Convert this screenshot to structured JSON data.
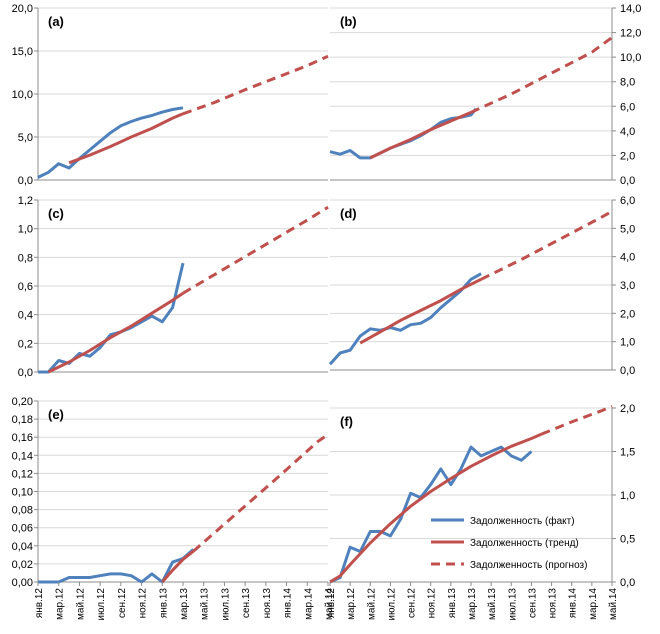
{
  "colors": {
    "fact": "#4f81bd",
    "trend": "#c0504d",
    "forecast": "#c0504d",
    "grid": "#d9d9d9",
    "axis": "#8c8c8c"
  },
  "x_labels": [
    "янв.12",
    "мар.12",
    "май.12",
    "июл.12",
    "сен.12",
    "ноя.12",
    "янв.13",
    "мар.13",
    "май.13",
    "июл.13",
    "сен.13",
    "ноя.13",
    "янв.14",
    "мар.14",
    "май.14"
  ],
  "legend": {
    "fact": "Задолженность (факт)",
    "trend": "Задолженность (тренд)",
    "forecast": "Задолженность (прогноз)"
  },
  "chart_data": [
    {
      "panel": "(a)",
      "type": "line",
      "axis_side": "left",
      "ylim": [
        0,
        20
      ],
      "yticks": [
        "0,0",
        "5,0",
        "10,0",
        "15,0",
        "20,0"
      ],
      "x_months": 28,
      "series": [
        {
          "key": "fact",
          "values": [
            [
              0,
              0.3
            ],
            [
              1,
              0.9
            ],
            [
              2,
              1.9
            ],
            [
              3,
              1.4
            ],
            [
              4,
              2.5
            ],
            [
              5,
              3.5
            ],
            [
              6,
              4.5
            ],
            [
              7,
              5.5
            ],
            [
              8,
              6.3
            ],
            [
              9,
              6.8
            ],
            [
              10,
              7.2
            ],
            [
              11,
              7.5
            ],
            [
              12,
              7.9
            ],
            [
              13,
              8.2
            ],
            [
              14,
              8.4
            ]
          ]
        },
        {
          "key": "trend",
          "values": [
            [
              3,
              2.0
            ],
            [
              5,
              2.9
            ],
            [
              7,
              3.9
            ],
            [
              9,
              5.0
            ],
            [
              11,
              6.0
            ],
            [
              13,
              7.2
            ],
            [
              14,
              7.7
            ]
          ]
        },
        {
          "key": "forecast",
          "values": [
            [
              14,
              7.7
            ],
            [
              17,
              9.0
            ],
            [
              20,
              10.5
            ],
            [
              23,
              11.9
            ],
            [
              26,
              13.3
            ],
            [
              28,
              14.4
            ]
          ]
        }
      ]
    },
    {
      "panel": "(b)",
      "type": "line",
      "axis_side": "right",
      "ylim": [
        0,
        14
      ],
      "yticks": [
        "0,0",
        "2,0",
        "4,0",
        "6,0",
        "8,0",
        "10,0",
        "12,0",
        "14,0"
      ],
      "x_months": 28,
      "series": [
        {
          "key": "fact",
          "values": [
            [
              0,
              2.3
            ],
            [
              1,
              2.1
            ],
            [
              2,
              2.4
            ],
            [
              3,
              1.8
            ],
            [
              4,
              1.8
            ],
            [
              5,
              2.2
            ],
            [
              6,
              2.6
            ],
            [
              7,
              2.9
            ],
            [
              8,
              3.2
            ],
            [
              9,
              3.6
            ],
            [
              10,
              4.1
            ],
            [
              11,
              4.7
            ],
            [
              12,
              5.0
            ],
            [
              13,
              5.1
            ],
            [
              14,
              5.3
            ],
            [
              14.5,
              5.8
            ]
          ]
        },
        {
          "key": "trend",
          "values": [
            [
              4,
              1.8
            ],
            [
              6,
              2.6
            ],
            [
              8,
              3.3
            ],
            [
              10,
              4.1
            ],
            [
              12,
              4.8
            ],
            [
              14,
              5.5
            ]
          ]
        },
        {
          "key": "forecast",
          "values": [
            [
              14,
              5.5
            ],
            [
              18,
              7.0
            ],
            [
              22,
              8.7
            ],
            [
              26,
              10.4
            ],
            [
              28,
              11.6
            ]
          ]
        }
      ]
    },
    {
      "panel": "(c)",
      "type": "line",
      "axis_side": "left",
      "ylim": [
        0,
        1.2
      ],
      "yticks": [
        "0,0",
        "0,2",
        "0,4",
        "0,6",
        "0,8",
        "1,0",
        "1,2"
      ],
      "x_months": 28,
      "series": [
        {
          "key": "fact",
          "values": [
            [
              0,
              0.0
            ],
            [
              1,
              0.0
            ],
            [
              2,
              0.08
            ],
            [
              3,
              0.06
            ],
            [
              4,
              0.13
            ],
            [
              5,
              0.11
            ],
            [
              6,
              0.17
            ],
            [
              7,
              0.26
            ],
            [
              8,
              0.28
            ],
            [
              9,
              0.31
            ],
            [
              10,
              0.35
            ],
            [
              11,
              0.39
            ],
            [
              12,
              0.35
            ],
            [
              13,
              0.45
            ],
            [
              14,
              0.76
            ]
          ]
        },
        {
          "key": "trend",
          "values": [
            [
              1,
              0.0
            ],
            [
              3,
              0.07
            ],
            [
              5,
              0.15
            ],
            [
              7,
              0.24
            ],
            [
              9,
              0.32
            ],
            [
              11,
              0.41
            ],
            [
              13,
              0.5
            ],
            [
              14,
              0.55
            ]
          ]
        },
        {
          "key": "forecast",
          "values": [
            [
              14,
              0.55
            ],
            [
              18,
              0.72
            ],
            [
              22,
              0.89
            ],
            [
              26,
              1.06
            ],
            [
              28,
              1.15
            ]
          ]
        }
      ]
    },
    {
      "panel": "(d)",
      "type": "line",
      "axis_side": "right",
      "ylim": [
        0,
        6
      ],
      "yticks": [
        "0,0",
        "1,0",
        "2,0",
        "3,0",
        "4,0",
        "5,0",
        "6,0"
      ],
      "x_months": 28,
      "series": [
        {
          "key": "fact",
          "values": [
            [
              0,
              0.2
            ],
            [
              1,
              0.6
            ],
            [
              2,
              0.7
            ],
            [
              3,
              1.2
            ],
            [
              4,
              1.45
            ],
            [
              5,
              1.4
            ],
            [
              6,
              1.5
            ],
            [
              7,
              1.4
            ],
            [
              8,
              1.6
            ],
            [
              9,
              1.65
            ],
            [
              10,
              1.85
            ],
            [
              11,
              2.2
            ],
            [
              12,
              2.5
            ],
            [
              13,
              2.8
            ],
            [
              14,
              3.2
            ],
            [
              15,
              3.4
            ]
          ]
        },
        {
          "key": "trend",
          "values": [
            [
              3,
              0.95
            ],
            [
              5,
              1.35
            ],
            [
              7,
              1.75
            ],
            [
              9,
              2.1
            ],
            [
              11,
              2.45
            ],
            [
              13,
              2.85
            ],
            [
              15,
              3.2
            ]
          ]
        },
        {
          "key": "forecast",
          "values": [
            [
              15,
              3.2
            ],
            [
              19,
              3.9
            ],
            [
              23,
              4.65
            ],
            [
              27,
              5.4
            ],
            [
              28,
              5.6
            ]
          ]
        }
      ]
    },
    {
      "panel": "(e)",
      "type": "line",
      "axis_side": "left",
      "ylim": [
        0,
        0.2
      ],
      "yticks": [
        "0,00",
        "0,02",
        "0,04",
        "0,06",
        "0,08",
        "0,10",
        "0,12",
        "0,14",
        "0,16",
        "0,18",
        "0,20"
      ],
      "x_months": 28,
      "series": [
        {
          "key": "fact",
          "values": [
            [
              0,
              0.0
            ],
            [
              1,
              0.0
            ],
            [
              2,
              0.0
            ],
            [
              3,
              0.005
            ],
            [
              4,
              0.005
            ],
            [
              5,
              0.005
            ],
            [
              6,
              0.007
            ],
            [
              7,
              0.009
            ],
            [
              8,
              0.009
            ],
            [
              9,
              0.007
            ],
            [
              10,
              0.0
            ],
            [
              11,
              0.009
            ],
            [
              12,
              0.0
            ],
            [
              13,
              0.022
            ],
            [
              14,
              0.026
            ],
            [
              15,
              0.036
            ]
          ]
        },
        {
          "key": "trend",
          "values": [
            [
              12,
              0.0
            ],
            [
              13,
              0.013
            ],
            [
              14,
              0.025
            ],
            [
              15,
              0.034
            ]
          ]
        },
        {
          "key": "forecast",
          "values": [
            [
              15,
              0.034
            ],
            [
              19,
              0.074
            ],
            [
              23,
              0.114
            ],
            [
              27,
              0.155
            ],
            [
              28,
              0.163
            ]
          ]
        }
      ]
    },
    {
      "panel": "(f)",
      "type": "line",
      "axis_side": "right",
      "ylim": [
        0,
        2.0
      ],
      "yticks": [
        "0,0",
        "0,5",
        "1,0",
        "1,5",
        "2,0"
      ],
      "x_months": 28,
      "series": [
        {
          "key": "fact",
          "values": [
            [
              0,
              0.0
            ],
            [
              1,
              0.05
            ],
            [
              2,
              0.4
            ],
            [
              3,
              0.35
            ],
            [
              4,
              0.58
            ],
            [
              5,
              0.58
            ],
            [
              6,
              0.53
            ],
            [
              7,
              0.72
            ],
            [
              8,
              1.02
            ],
            [
              9,
              0.97
            ],
            [
              10,
              1.12
            ],
            [
              11,
              1.3
            ],
            [
              12,
              1.12
            ],
            [
              13,
              1.3
            ],
            [
              14,
              1.55
            ],
            [
              15,
              1.45
            ],
            [
              16,
              1.5
            ],
            [
              17,
              1.55
            ],
            [
              18,
              1.45
            ],
            [
              19,
              1.4
            ],
            [
              20,
              1.5
            ]
          ]
        },
        {
          "key": "trend",
          "values": [
            [
              0,
              0.0
            ],
            [
              1,
              0.07
            ],
            [
              2,
              0.2
            ],
            [
              4,
              0.45
            ],
            [
              6,
              0.67
            ],
            [
              8,
              0.87
            ],
            [
              10,
              1.04
            ],
            [
              12,
              1.19
            ],
            [
              14,
              1.33
            ],
            [
              16,
              1.45
            ],
            [
              18,
              1.56
            ],
            [
              20,
              1.65
            ],
            [
              21,
              1.7
            ]
          ]
        },
        {
          "key": "forecast",
          "values": [
            [
              21,
              1.7
            ],
            [
              24,
              1.84
            ],
            [
              27,
              1.97
            ],
            [
              28,
              2.02
            ]
          ]
        }
      ]
    }
  ]
}
